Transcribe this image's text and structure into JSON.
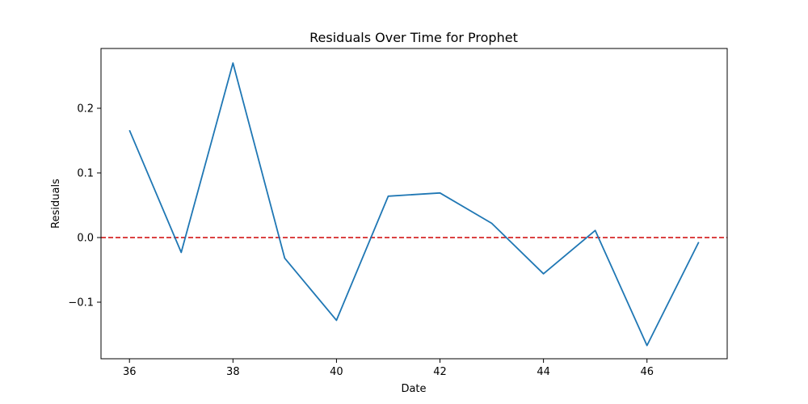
{
  "chart_data": {
    "type": "line",
    "title": "Residuals Over Time for Prophet",
    "xlabel": "Date",
    "ylabel": "Residuals",
    "xlim": [
      35.45,
      47.55
    ],
    "ylim": [
      -0.1875,
      0.2925
    ],
    "xticks": [
      36,
      38,
      40,
      42,
      44,
      46
    ],
    "xtick_labels": [
      "36",
      "38",
      "40",
      "42",
      "44",
      "46"
    ],
    "yticks": [
      -0.1,
      0.0,
      0.1,
      0.2
    ],
    "ytick_labels": [
      "−0.1",
      "0.0",
      "0.1",
      "0.2"
    ],
    "grid": false,
    "series": [
      {
        "color": "#1f77b4",
        "x": [
          36,
          37,
          38,
          39,
          40,
          41,
          42,
          43,
          44,
          45,
          46,
          47
        ],
        "y": [
          0.166,
          -0.023,
          0.27,
          -0.032,
          -0.128,
          0.064,
          0.069,
          0.022,
          -0.056,
          0.011,
          -0.167,
          -0.007
        ]
      }
    ],
    "reference_line": {
      "y": 0.0,
      "color": "#d62728",
      "style": "dashed"
    }
  }
}
